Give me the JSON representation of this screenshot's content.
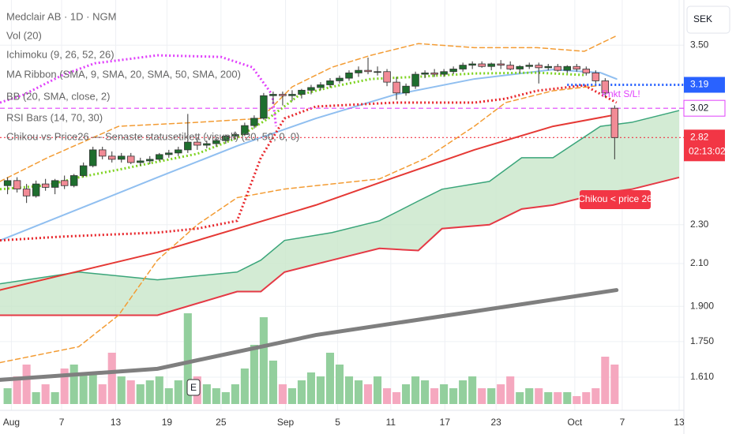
{
  "chart_data": {
    "type": "candlestick",
    "title": "Medclair AB · 1D · NGM",
    "indicators": [
      "Vol (20)",
      "Ichimoku (9, 26, 52, 26)",
      "MA Ribbon (SMA, 9, SMA, 20, SMA, 50, SMA, 200)",
      "BB (20, SMA, close, 2)",
      "RSI Bars (14, 70, 30)",
      "Chikou vs Price26 — Senaste statusetikett (visuell) (20, 50, 0, 0)"
    ],
    "currency": "SEK",
    "log_scale": true,
    "grid": true,
    "up_color": "#1e6e2e",
    "down_color": "#f28b96",
    "volume_up_color": "#93cf9d",
    "volume_down_color": "#f5a8bf",
    "xlim": [
      -0.8,
      71.3
    ],
    "xticks": [
      {
        "value": 0.4,
        "label": "Aug"
      },
      {
        "value": 5.7,
        "label": "7"
      },
      {
        "value": 11.4,
        "label": "13"
      },
      {
        "value": 16.8,
        "label": "19"
      },
      {
        "value": 22.5,
        "label": "25"
      },
      {
        "value": 29.3,
        "label": "Sep"
      },
      {
        "value": 34.8,
        "label": "5"
      },
      {
        "value": 40.4,
        "label": "11"
      },
      {
        "value": 46.1,
        "label": "17"
      },
      {
        "value": 51.5,
        "label": "23"
      },
      {
        "value": 59.8,
        "label": "Oct"
      },
      {
        "value": 64.8,
        "label": "7"
      },
      {
        "value": 70.8,
        "label": "13"
      }
    ],
    "ylim": [
      1.49,
      3.89
    ],
    "yticks": [
      {
        "value": 3.5,
        "label": "3.50"
      },
      {
        "value": 2.3,
        "label": "2.30"
      },
      {
        "value": 2.1,
        "label": "2.10"
      },
      {
        "value": 1.9,
        "label": "1.900"
      },
      {
        "value": 1.75,
        "label": "1.750"
      },
      {
        "value": 1.61,
        "label": "1.610"
      }
    ],
    "ohlc": [
      [
        2.52,
        2.57,
        2.47,
        2.55
      ],
      [
        2.55,
        2.57,
        2.48,
        2.5
      ],
      [
        2.5,
        2.53,
        2.42,
        2.46
      ],
      [
        2.46,
        2.55,
        2.45,
        2.53
      ],
      [
        2.53,
        2.56,
        2.49,
        2.51
      ],
      [
        2.51,
        2.56,
        2.47,
        2.55
      ],
      [
        2.55,
        2.58,
        2.5,
        2.52
      ],
      [
        2.52,
        2.59,
        2.51,
        2.58
      ],
      [
        2.58,
        2.66,
        2.57,
        2.64
      ],
      [
        2.64,
        2.76,
        2.63,
        2.74
      ],
      [
        2.74,
        2.76,
        2.68,
        2.7
      ],
      [
        2.7,
        2.73,
        2.66,
        2.68
      ],
      [
        2.68,
        2.72,
        2.66,
        2.7
      ],
      [
        2.7,
        2.72,
        2.65,
        2.66
      ],
      [
        2.66,
        2.69,
        2.64,
        2.67
      ],
      [
        2.67,
        2.7,
        2.65,
        2.68
      ],
      [
        2.68,
        2.72,
        2.67,
        2.71
      ],
      [
        2.71,
        2.74,
        2.69,
        2.72
      ],
      [
        2.72,
        2.76,
        2.7,
        2.74
      ],
      [
        2.74,
        2.98,
        2.72,
        2.79
      ],
      [
        2.79,
        2.82,
        2.74,
        2.77
      ],
      [
        2.77,
        2.8,
        2.75,
        2.78
      ],
      [
        2.78,
        2.82,
        2.76,
        2.8
      ],
      [
        2.8,
        2.84,
        2.78,
        2.83
      ],
      [
        2.83,
        2.86,
        2.81,
        2.84
      ],
      [
        2.84,
        2.92,
        2.83,
        2.9
      ],
      [
        2.9,
        2.97,
        2.88,
        2.95
      ],
      [
        2.95,
        3.13,
        2.94,
        3.11
      ],
      [
        3.11,
        3.14,
        3.05,
        3.12
      ],
      [
        3.12,
        3.14,
        3.04,
        3.11
      ],
      [
        3.11,
        3.15,
        3.07,
        3.12
      ],
      [
        3.12,
        3.16,
        3.09,
        3.15
      ],
      [
        3.15,
        3.19,
        3.12,
        3.17
      ],
      [
        3.17,
        3.21,
        3.15,
        3.19
      ],
      [
        3.19,
        3.24,
        3.17,
        3.22
      ],
      [
        3.22,
        3.26,
        3.2,
        3.24
      ],
      [
        3.24,
        3.3,
        3.22,
        3.28
      ],
      [
        3.28,
        3.33,
        3.25,
        3.3
      ],
      [
        3.3,
        3.4,
        3.27,
        3.29
      ],
      [
        3.29,
        3.33,
        3.26,
        3.29
      ],
      [
        3.29,
        3.31,
        3.18,
        3.21
      ],
      [
        3.21,
        3.25,
        3.08,
        3.13
      ],
      [
        3.13,
        3.2,
        3.11,
        3.18
      ],
      [
        3.18,
        3.29,
        3.16,
        3.27
      ],
      [
        3.27,
        3.3,
        3.24,
        3.28
      ],
      [
        3.28,
        3.31,
        3.25,
        3.27
      ],
      [
        3.27,
        3.31,
        3.25,
        3.29
      ],
      [
        3.29,
        3.33,
        3.27,
        3.31
      ],
      [
        3.31,
        3.36,
        3.29,
        3.34
      ],
      [
        3.34,
        3.37,
        3.31,
        3.35
      ],
      [
        3.35,
        3.37,
        3.32,
        3.33
      ],
      [
        3.33,
        3.36,
        3.3,
        3.35
      ],
      [
        3.35,
        3.38,
        3.31,
        3.34
      ],
      [
        3.34,
        3.37,
        3.3,
        3.31
      ],
      [
        3.31,
        3.34,
        3.28,
        3.33
      ],
      [
        3.33,
        3.36,
        3.31,
        3.34
      ],
      [
        3.34,
        3.36,
        3.2,
        3.32
      ],
      [
        3.32,
        3.35,
        3.3,
        3.33
      ],
      [
        3.33,
        3.35,
        3.29,
        3.3
      ],
      [
        3.3,
        3.34,
        3.28,
        3.33
      ],
      [
        3.33,
        3.35,
        3.29,
        3.31
      ],
      [
        3.31,
        3.33,
        3.26,
        3.28
      ],
      [
        3.28,
        3.3,
        3.2,
        3.22
      ],
      [
        3.22,
        3.24,
        3.1,
        3.13
      ],
      [
        3.02,
        3.04,
        2.68,
        2.82
      ]
    ],
    "volume": [
      20,
      35,
      50,
      15,
      25,
      15,
      45,
      50,
      40,
      40,
      25,
      65,
      35,
      30,
      25,
      30,
      35,
      20,
      30,
      115,
      35,
      25,
      20,
      15,
      25,
      45,
      75,
      110,
      55,
      25,
      20,
      30,
      40,
      35,
      65,
      50,
      35,
      30,
      25,
      35,
      20,
      15,
      25,
      35,
      30,
      20,
      25,
      20,
      30,
      35,
      20,
      20,
      25,
      35,
      15,
      20,
      20,
      15,
      15,
      15,
      10,
      15,
      20,
      60,
      50
    ],
    "vlim": [
      0,
      300
    ],
    "cloud": {
      "fill": "#c8e6c9",
      "upper_color": "#3aa57a",
      "lower_color": "#e53945",
      "x": [
        -0.8,
        7.5,
        15.8,
        24.2,
        26.7,
        29.2,
        34.2,
        39.2,
        43.3,
        45.8,
        50.8,
        54.2,
        57.5,
        62.5,
        65.8,
        70.8
      ],
      "upper": [
        2.003,
        2.059,
        2.022,
        2.059,
        2.117,
        2.217,
        2.258,
        2.321,
        2.431,
        2.499,
        2.545,
        2.69,
        2.69,
        2.895,
        2.922,
        3.004
      ],
      "lower": [
        1.861,
        1.861,
        1.861,
        1.967,
        1.967,
        2.059,
        2.117,
        2.176,
        2.165,
        2.279,
        2.3,
        2.386,
        2.408,
        2.476,
        2.499,
        2.569
      ]
    },
    "lines": [
      {
        "color": "#90bff0",
        "dash": "solid",
        "width": 2,
        "x": [
          -0.8,
          7.5,
          15.8,
          24.2,
          32.5,
          40.8,
          49.2,
          57.5,
          62.5,
          64.2
        ],
        "values": [
          2.217,
          2.386,
          2.569,
          2.765,
          2.949,
          3.117,
          3.234,
          3.306,
          3.282,
          3.234
        ]
      },
      {
        "color": "#e53935",
        "dash": "solid",
        "width": 2,
        "x": [
          -0.8,
          15.8,
          32.5,
          40.8,
          49.2,
          57.5,
          64.2
        ],
        "values": [
          1.974,
          2.156,
          2.408,
          2.569,
          2.74,
          2.895,
          2.976
        ]
      },
      {
        "color": "#7f7f7f",
        "dash": "solid",
        "width": 5,
        "x": [
          -0.8,
          15.8,
          32.5,
          49.2,
          64.2
        ],
        "values": [
          1.6,
          1.642,
          1.777,
          1.878,
          1.974
        ]
      },
      {
        "color": "#f39c34",
        "dash": "dashed",
        "width": 1.5,
        "x": [
          -0.8,
          4.2,
          11.7,
          20,
          26.7,
          30,
          34.2,
          38.3,
          43.3,
          49.2,
          55.8,
          60.8,
          64.2
        ],
        "values": [
          2.545,
          2.69,
          2.895,
          2.922,
          2.949,
          3.175,
          3.324,
          3.418,
          3.513,
          3.48,
          3.48,
          3.45,
          3.578
        ]
      },
      {
        "color": "#f39c34",
        "dash": "dashed",
        "width": 1.5,
        "x": [
          -0.8,
          7.5,
          11.7,
          15.8,
          20,
          24.2,
          29.2,
          39.2,
          44.2,
          49.2,
          52.5,
          57.5,
          62.5
        ],
        "values": [
          1.666,
          1.729,
          1.861,
          2.117,
          2.3,
          2.45,
          2.5,
          2.56,
          2.69,
          2.895,
          3.06,
          3.146,
          3.186
        ]
      },
      {
        "color": "#7ed321",
        "dash": "dotted",
        "width": 3,
        "x": [
          -0.8,
          4.2,
          7.5,
          11.7,
          20,
          24.2,
          27.5,
          30.8,
          34.2,
          38.3,
          43.3,
          49.2,
          55.8,
          60.8
        ],
        "values": [
          2.499,
          2.522,
          2.569,
          2.616,
          2.715,
          2.818,
          2.949,
          3.117,
          3.175,
          3.234,
          3.251,
          3.276,
          3.282,
          3.264
        ]
      },
      {
        "color": "#e8262b",
        "dash": "dotted",
        "width": 3,
        "x": [
          -0.8,
          5.8,
          15.8,
          20,
          24.2,
          26.7,
          29.2,
          32.5,
          40.8,
          49.2,
          52.5,
          55.8,
          60.8,
          64.2
        ],
        "values": [
          2.217,
          2.237,
          2.258,
          2.279,
          2.321,
          2.69,
          2.949,
          3.032,
          3.06,
          3.06,
          3.088,
          3.146,
          3.186,
          3.06
        ]
      },
      {
        "color": "#e040fb",
        "dash": "dotted",
        "width": 3,
        "x": [
          -0.8,
          1.7,
          5.8,
          9.2,
          12.5,
          15.8,
          22.5,
          25.8,
          27.9,
          28.3
        ],
        "values": [
          3.06,
          3.117,
          3.264,
          3.355,
          3.386,
          3.418,
          3.405,
          3.324,
          3.117,
          2.895
        ]
      }
    ],
    "price_lines": [
      {
        "value": 3.19,
        "color": "#2962ff",
        "dash": "dotted",
        "from": 59.0
      },
      {
        "value": 3.02,
        "color": "#e040fb",
        "dash": "dashed",
        "from": -0.8
      },
      {
        "value": 2.82,
        "color": "#f23645",
        "dash": "dotted",
        "from": -0.8
      }
    ],
    "countdown": "02:13:02",
    "annotations": [
      "Pnkt S/L!",
      "Chikou < price 26"
    ],
    "events": [
      {
        "label": "E",
        "x": 19.6
      }
    ]
  }
}
